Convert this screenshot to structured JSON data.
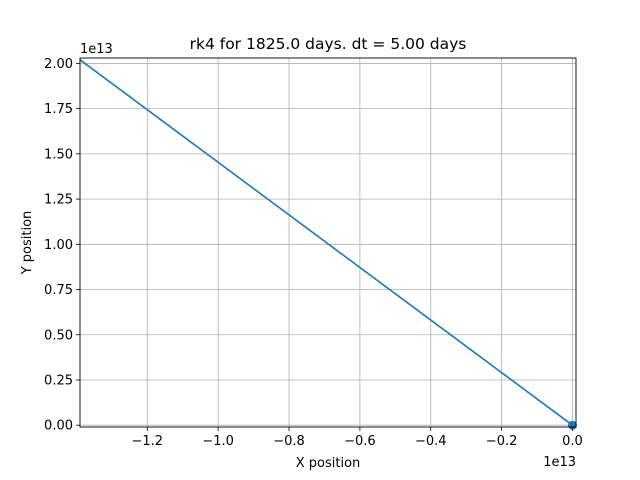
{
  "chart_data": {
    "type": "line",
    "title": "rk4 for 1825.0 days. dt = 5.00 days",
    "xlabel": "X position",
    "ylabel": "Y position",
    "x_offset_label": "1e13",
    "y_offset_label": "1e13",
    "xlim": [
      -1.39,
      0.01
    ],
    "ylim": [
      -0.01,
      2.03
    ],
    "x_ticks": [
      -1.2,
      -1.0,
      -0.8,
      -0.6,
      -0.4,
      -0.2,
      0.0
    ],
    "x_tick_labels": [
      "−1.2",
      "−1.0",
      "−0.8",
      "−0.6",
      "−0.4",
      "−0.2",
      "0.0"
    ],
    "y_ticks": [
      0.0,
      0.25,
      0.5,
      0.75,
      1.0,
      1.25,
      1.5,
      1.75,
      2.0
    ],
    "y_tick_labels": [
      "0.00",
      "0.25",
      "0.50",
      "0.75",
      "1.00",
      "1.25",
      "1.50",
      "1.75",
      "2.00"
    ],
    "grid": true,
    "series": [
      {
        "color": "#1f77b4",
        "x": [
          -1.39,
          0.0
        ],
        "y": [
          2.02,
          0.0
        ]
      }
    ],
    "marker_points": [
      {
        "x": 0.0,
        "y": 0.0,
        "color": "#1f77b4"
      }
    ]
  }
}
